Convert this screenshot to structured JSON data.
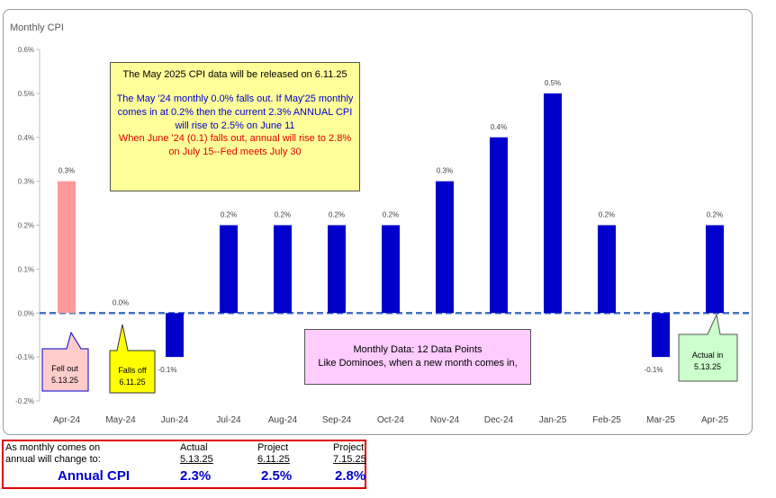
{
  "chart_data": {
    "type": "bar",
    "title": "Monthly CPI",
    "categories": [
      "Apr-24",
      "May-24",
      "Jun-24",
      "Jul-24",
      "Aug-24",
      "Sep-24",
      "Oct-24",
      "Nov-24",
      "Dec-24",
      "Jan-25",
      "Feb-25",
      "Mar-25",
      "Apr-25"
    ],
    "values": [
      0.3,
      0.0,
      -0.1,
      0.2,
      0.2,
      0.2,
      0.2,
      0.3,
      0.4,
      0.5,
      0.2,
      -0.1,
      0.2
    ],
    "data_labels": [
      "0.3%",
      "0.0%",
      "-0.1%",
      "0.2%",
      "0.2%",
      "0.2%",
      "0.2%",
      "0.3%",
      "0.4%",
      "0.5%",
      "0.2%",
      "-0.1%",
      "0.2%"
    ],
    "bar_colors": [
      "#ff9999",
      "#0000cc",
      "#0000cc",
      "#0000cc",
      "#0000cc",
      "#0000cc",
      "#0000cc",
      "#0000cc",
      "#0000cc",
      "#0000cc",
      "#0000cc",
      "#0000cc",
      "#0000cc"
    ],
    "ylim": [
      -0.2,
      0.6
    ],
    "yticks": [
      -0.2,
      -0.1,
      0.0,
      0.1,
      0.2,
      0.3,
      0.4,
      0.5,
      0.6
    ],
    "ytick_labels": [
      "-0.2%",
      "-0.1%",
      "0.0%",
      "0.1%",
      "0.2%",
      "0.3%",
      "0.4%",
      "0.5%",
      "0.6%"
    ],
    "zero_line": "dashed",
    "grid": false,
    "legend": "none"
  },
  "notes": {
    "release": "The May 2025 CPI data will be released on 6.11.25",
    "falls_out_line1": "The May '24 monthly 0.0% falls out.  If May'25 monthly",
    "falls_out_line2": "comes in at 0.2% then the current 2.3% ANNUAL CPI",
    "falls_out_line3": "will rise to 2.5% on June 11",
    "june_line1": "When June '24 (0.1) falls out, annual will rise to 2.8%",
    "june_line2": "on July 15--Fed meets July 30",
    "dominoes_line1": "Monthly Data: 12 Data Points",
    "dominoes_line2": "Like Dominoes, when a new month comes in,"
  },
  "callouts": {
    "fell_out_line1": "Fell out",
    "fell_out_line2": "5.13.25",
    "falls_off_line1": "Falls off",
    "falls_off_line2": "6.11.25",
    "actual_line1": "Actual in",
    "actual_line2": "5.13.25"
  },
  "colors": {
    "bar_main": "#0000cc",
    "bar_fell_out": "#ff9999",
    "yellow_note": "#ffff99",
    "pink_note": "#ffccff",
    "green_note": "#ccffcc",
    "table_border": "#e00000"
  },
  "table": {
    "row1_label": "As monthly comes on",
    "row2_label": "annual will change to:",
    "annual_label": "Annual CPI",
    "columns": [
      {
        "header": "Actual",
        "date": "5.13.25",
        "value": "2.3%"
      },
      {
        "header": "Project",
        "date": "6.11.25",
        "value": "2.5%"
      },
      {
        "header": "Project",
        "date": "7.15.25",
        "value": "2.8%"
      }
    ]
  }
}
